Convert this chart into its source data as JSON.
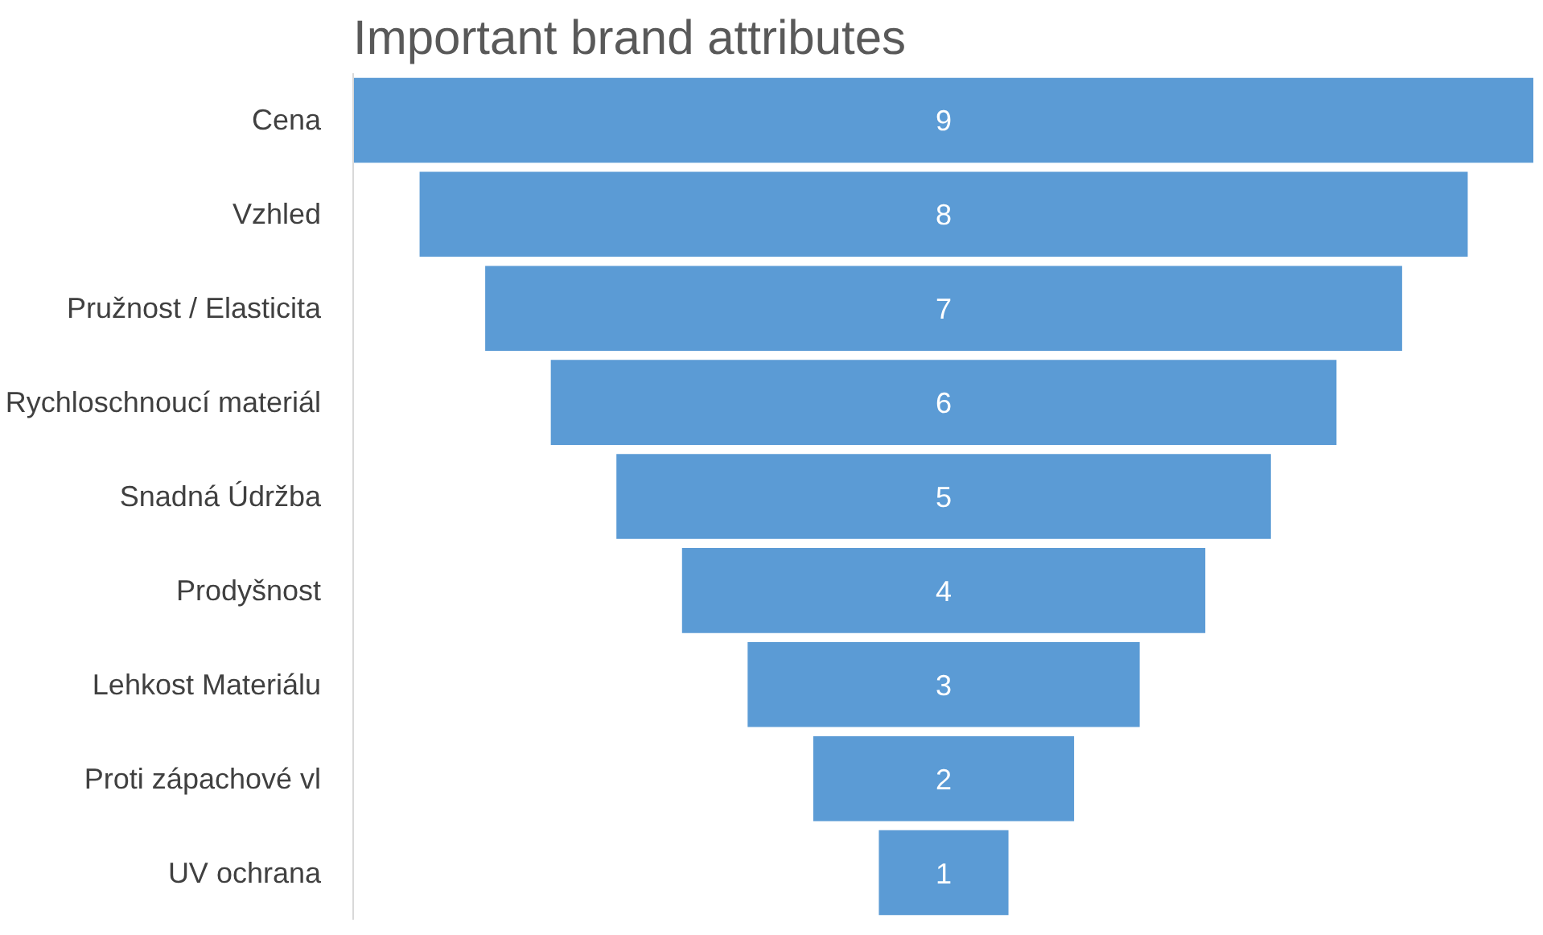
{
  "chart_data": {
    "type": "other",
    "title": "Important brand attributes",
    "categories": [
      "Cena",
      "Vzhled",
      "Pružnost / Elasticita",
      "Rychloschnoucí materiál",
      "Snadná Údržba",
      "Prodyšnost",
      "Lehkost Materiálu",
      "Proti zápachové vl",
      "UV ochrana"
    ],
    "values": [
      9,
      8,
      7,
      6,
      5,
      4,
      3,
      2,
      1
    ],
    "color": "#5b9bd5",
    "data_labels": true
  }
}
